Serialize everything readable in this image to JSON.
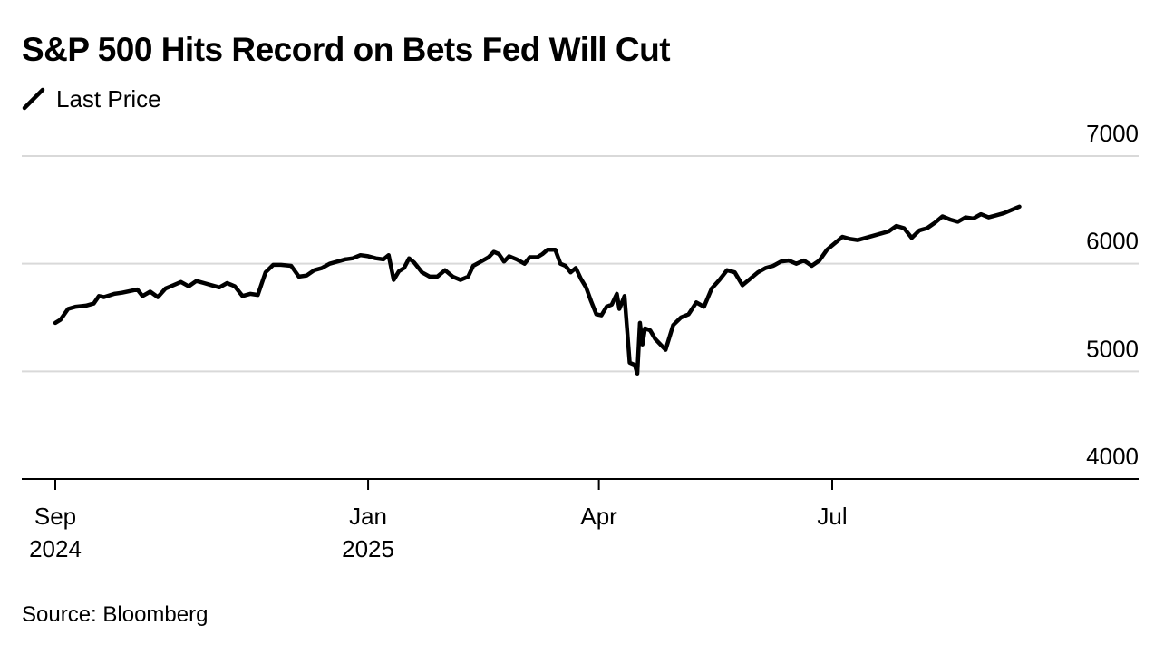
{
  "title": "S&P 500 Hits Record on Bets Fed Will Cut",
  "source": "Source: Bloomberg",
  "colors": {
    "line": "#000000",
    "grid": "#d9d9d9",
    "axis": "#000000"
  },
  "chart_data": {
    "type": "line",
    "title": "S&P 500 Hits Record on Bets Fed Will Cut",
    "xlabel": "",
    "ylabel": "",
    "ylim": [
      4000,
      7000
    ],
    "y_ticks": [
      {
        "label": "7000",
        "value": 7000
      },
      {
        "label": "6000",
        "value": 6000
      },
      {
        "label": "5000",
        "value": 5000
      },
      {
        "label": "4000",
        "value": 4000
      }
    ],
    "x_ticks": [
      {
        "date": "2024-09-01",
        "line1": "Sep",
        "line2": "2024"
      },
      {
        "date": "2025-01-01",
        "line1": "Jan",
        "line2": "2025"
      },
      {
        "date": "2025-04-01",
        "line1": "Apr",
        "line2": ""
      },
      {
        "date": "2025-07-01",
        "line1": "Jul",
        "line2": ""
      }
    ],
    "grid": true,
    "legend_position": "top-left",
    "series": [
      {
        "name": "Last Price",
        "points": [
          [
            "2024-09-01",
            5450
          ],
          [
            "2024-09-03",
            5480
          ],
          [
            "2024-09-06",
            5580
          ],
          [
            "2024-09-09",
            5600
          ],
          [
            "2024-09-13",
            5610
          ],
          [
            "2024-09-16",
            5630
          ],
          [
            "2024-09-18",
            5700
          ],
          [
            "2024-09-20",
            5690
          ],
          [
            "2024-09-24",
            5720
          ],
          [
            "2024-09-27",
            5730
          ],
          [
            "2024-10-01",
            5750
          ],
          [
            "2024-10-03",
            5760
          ],
          [
            "2024-10-05",
            5700
          ],
          [
            "2024-10-08",
            5740
          ],
          [
            "2024-10-11",
            5690
          ],
          [
            "2024-10-14",
            5770
          ],
          [
            "2024-10-17",
            5800
          ],
          [
            "2024-10-20",
            5830
          ],
          [
            "2024-10-23",
            5790
          ],
          [
            "2024-10-26",
            5840
          ],
          [
            "2024-10-29",
            5820
          ],
          [
            "2024-11-01",
            5800
          ],
          [
            "2024-11-04",
            5780
          ],
          [
            "2024-11-07",
            5820
          ],
          [
            "2024-11-10",
            5790
          ],
          [
            "2024-11-13",
            5700
          ],
          [
            "2024-11-16",
            5720
          ],
          [
            "2024-11-19",
            5710
          ],
          [
            "2024-11-22",
            5920
          ],
          [
            "2024-11-25",
            5990
          ],
          [
            "2024-11-28",
            5990
          ],
          [
            "2024-12-02",
            5980
          ],
          [
            "2024-12-05",
            5880
          ],
          [
            "2024-12-08",
            5890
          ],
          [
            "2024-12-11",
            5940
          ],
          [
            "2024-12-14",
            5960
          ],
          [
            "2024-12-17",
            6000
          ],
          [
            "2024-12-20",
            6020
          ],
          [
            "2024-12-23",
            6040
          ],
          [
            "2024-12-26",
            6050
          ],
          [
            "2024-12-29",
            6080
          ],
          [
            "2025-01-01",
            6070
          ],
          [
            "2025-01-04",
            6050
          ],
          [
            "2025-01-07",
            6040
          ],
          [
            "2025-01-09",
            6080
          ],
          [
            "2025-01-11",
            5850
          ],
          [
            "2025-01-13",
            5930
          ],
          [
            "2025-01-15",
            5960
          ],
          [
            "2025-01-17",
            6050
          ],
          [
            "2025-01-19",
            6010
          ],
          [
            "2025-01-22",
            5920
          ],
          [
            "2025-01-25",
            5880
          ],
          [
            "2025-01-28",
            5880
          ],
          [
            "2025-01-31",
            5940
          ],
          [
            "2025-02-03",
            5880
          ],
          [
            "2025-02-06",
            5850
          ],
          [
            "2025-02-09",
            5880
          ],
          [
            "2025-02-11",
            5980
          ],
          [
            "2025-02-14",
            6020
          ],
          [
            "2025-02-17",
            6060
          ],
          [
            "2025-02-19",
            6110
          ],
          [
            "2025-02-21",
            6090
          ],
          [
            "2025-02-23",
            6020
          ],
          [
            "2025-02-25",
            6070
          ],
          [
            "2025-02-28",
            6040
          ],
          [
            "2025-03-03",
            6000
          ],
          [
            "2025-03-05",
            6060
          ],
          [
            "2025-03-08",
            6060
          ],
          [
            "2025-03-10",
            6090
          ],
          [
            "2025-03-12",
            6130
          ],
          [
            "2025-03-15",
            6130
          ],
          [
            "2025-03-17",
            6000
          ],
          [
            "2025-03-19",
            5980
          ],
          [
            "2025-03-21",
            5920
          ],
          [
            "2025-03-23",
            5960
          ],
          [
            "2025-03-25",
            5860
          ],
          [
            "2025-03-27",
            5780
          ],
          [
            "2025-03-29",
            5650
          ],
          [
            "2025-03-31",
            5530
          ],
          [
            "2025-04-02",
            5520
          ],
          [
            "2025-04-04",
            5600
          ],
          [
            "2025-04-06",
            5620
          ],
          [
            "2025-04-08",
            5720
          ],
          [
            "2025-04-09",
            5580
          ],
          [
            "2025-04-11",
            5700
          ],
          [
            "2025-04-13",
            5080
          ],
          [
            "2025-04-15",
            5060
          ],
          [
            "2025-04-16",
            4980
          ],
          [
            "2025-04-17",
            5450
          ],
          [
            "2025-04-18",
            5250
          ],
          [
            "2025-04-19",
            5400
          ],
          [
            "2025-04-21",
            5380
          ],
          [
            "2025-04-23",
            5300
          ],
          [
            "2025-04-25",
            5250
          ],
          [
            "2025-04-27",
            5200
          ],
          [
            "2025-04-30",
            5430
          ],
          [
            "2025-05-03",
            5500
          ],
          [
            "2025-05-06",
            5530
          ],
          [
            "2025-05-09",
            5640
          ],
          [
            "2025-05-12",
            5600
          ],
          [
            "2025-05-15",
            5770
          ],
          [
            "2025-05-18",
            5850
          ],
          [
            "2025-05-21",
            5940
          ],
          [
            "2025-05-24",
            5920
          ],
          [
            "2025-05-27",
            5800
          ],
          [
            "2025-05-30",
            5860
          ],
          [
            "2025-06-02",
            5920
          ],
          [
            "2025-06-05",
            5960
          ],
          [
            "2025-06-08",
            5980
          ],
          [
            "2025-06-11",
            6020
          ],
          [
            "2025-06-14",
            6030
          ],
          [
            "2025-06-17",
            6000
          ],
          [
            "2025-06-20",
            6030
          ],
          [
            "2025-06-23",
            5980
          ],
          [
            "2025-06-26",
            6030
          ],
          [
            "2025-06-29",
            6130
          ],
          [
            "2025-07-02",
            6190
          ],
          [
            "2025-07-05",
            6250
          ],
          [
            "2025-07-08",
            6230
          ],
          [
            "2025-07-11",
            6220
          ],
          [
            "2025-07-14",
            6240
          ],
          [
            "2025-07-17",
            6260
          ],
          [
            "2025-07-20",
            6280
          ],
          [
            "2025-07-23",
            6300
          ],
          [
            "2025-07-26",
            6350
          ],
          [
            "2025-07-29",
            6330
          ],
          [
            "2025-08-01",
            6240
          ],
          [
            "2025-08-04",
            6310
          ],
          [
            "2025-08-07",
            6330
          ],
          [
            "2025-08-10",
            6380
          ],
          [
            "2025-08-13",
            6440
          ],
          [
            "2025-08-16",
            6410
          ],
          [
            "2025-08-19",
            6390
          ],
          [
            "2025-08-22",
            6430
          ],
          [
            "2025-08-25",
            6420
          ],
          [
            "2025-08-28",
            6460
          ],
          [
            "2025-08-31",
            6430
          ],
          [
            "2025-09-03",
            6450
          ],
          [
            "2025-09-06",
            6470
          ],
          [
            "2025-09-09",
            6500
          ],
          [
            "2025-09-11",
            6520
          ],
          [
            "2025-09-12",
            6530
          ]
        ]
      }
    ]
  }
}
